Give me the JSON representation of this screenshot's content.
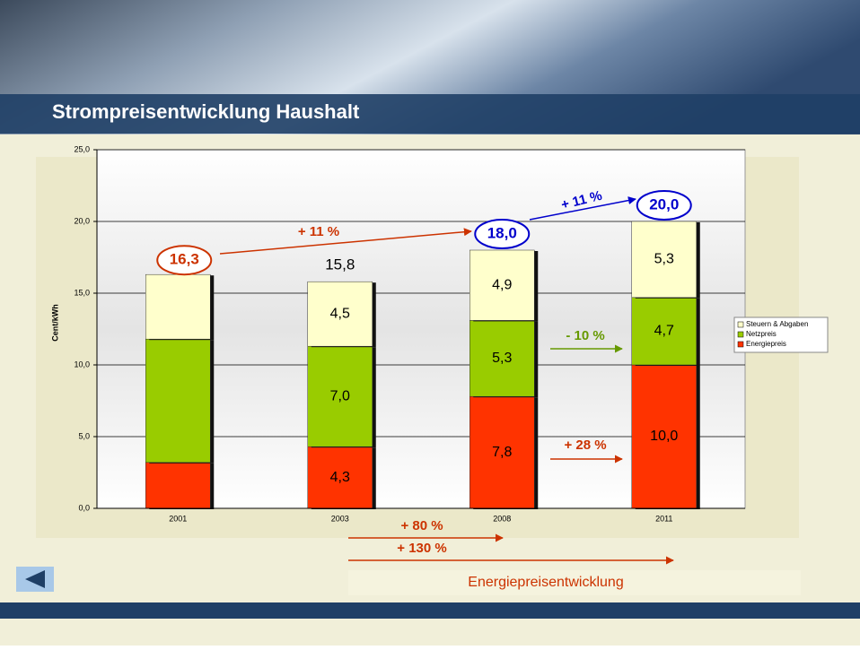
{
  "chart_data": {
    "type": "stacked_bar",
    "title": "Strompreisentwicklung Haushalt",
    "y_label": "Cent/kWh",
    "categories": [
      "2001",
      "2003",
      "2008",
      "2011"
    ],
    "series": [
      {
        "name": "Energiepreis",
        "color": "#ff3300",
        "values": [
          3.2,
          4.3,
          7.8,
          10.0
        ],
        "value_labels": [
          null,
          "4,3",
          "7,8",
          "10,0"
        ]
      },
      {
        "name": "Netzpreis",
        "color": "#99cc00",
        "values": [
          8.6,
          7.0,
          5.3,
          4.7
        ],
        "value_labels": [
          null,
          "7,0",
          "5,3",
          "4,7"
        ]
      },
      {
        "name": "Steuern & Abgaben",
        "color": "#ffffcc",
        "values": [
          4.5,
          4.5,
          4.9,
          5.3
        ],
        "value_labels": [
          null,
          "4,5",
          "4,9",
          "5,3"
        ]
      }
    ],
    "totals": {
      "values": [
        16.3,
        15.8,
        18.0,
        20.0
      ],
      "value_labels": [
        "16,3",
        "15,8",
        "18,0",
        "20,0"
      ],
      "colors": [
        "#cc3300",
        "#000000",
        "#0000cc",
        "#0000cc"
      ]
    },
    "ylim": [
      0,
      25
    ],
    "yticks": [
      {
        "value": 0,
        "label": "0,0"
      },
      {
        "value": 5,
        "label": "5,0"
      },
      {
        "value": 10,
        "label": "10,0"
      },
      {
        "value": 15,
        "label": "15,0"
      },
      {
        "value": 20,
        "label": "20,0"
      },
      {
        "value": 25,
        "label": "25,0"
      }
    ],
    "grid": true,
    "legend_position": "right",
    "annotations": [
      {
        "text": "+ 11 %",
        "color": "#cc3300"
      },
      {
        "text": "+ 11 %",
        "color": "#0000cc"
      },
      {
        "text": "- 10 %",
        "color": "#669900"
      },
      {
        "text": "+ 28 %",
        "color": "#cc3300"
      },
      {
        "text": "+ 80 %",
        "color": "#cc3300"
      },
      {
        "text": "+ 130 %",
        "color": "#cc3300"
      }
    ],
    "footer_label": "Energiepreisentwicklung"
  }
}
